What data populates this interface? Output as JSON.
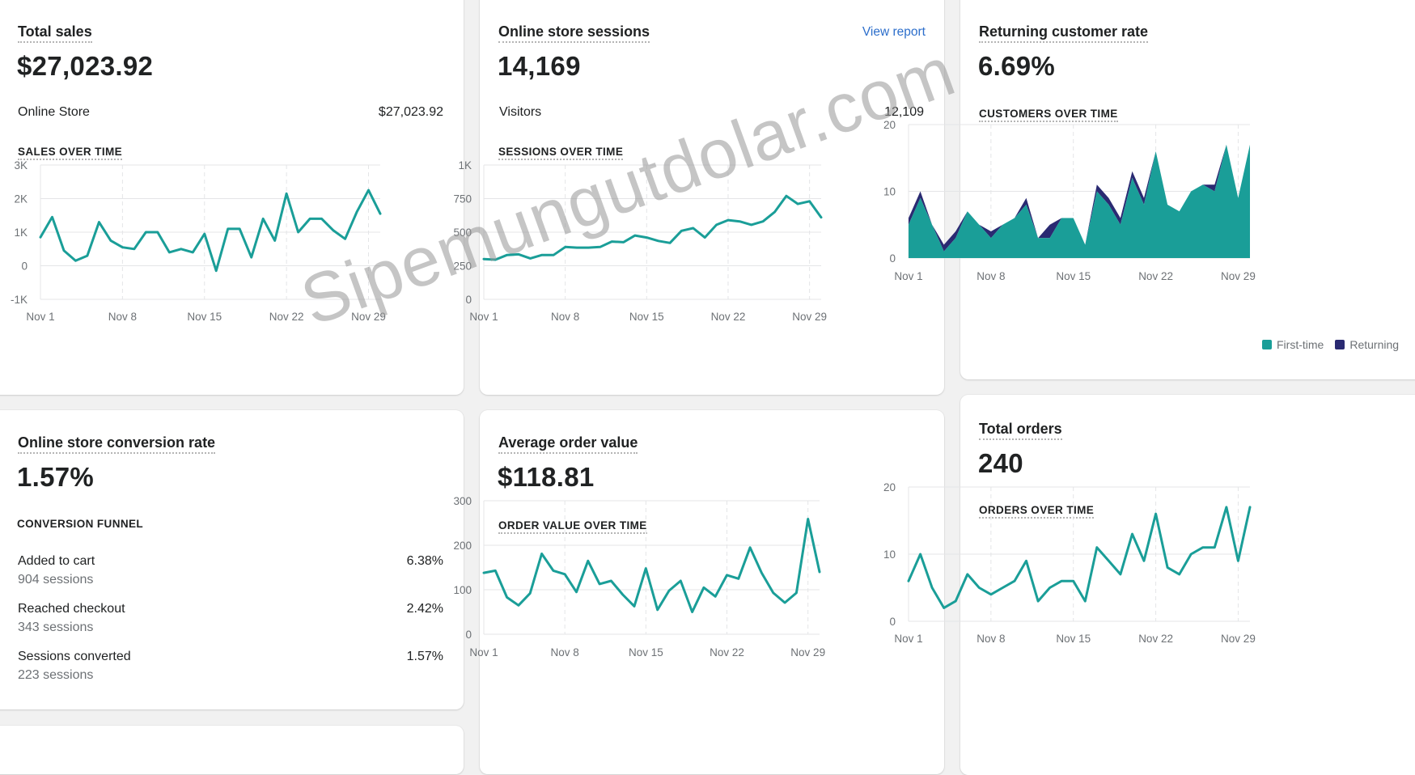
{
  "cards": {
    "total_sales": {
      "title": "Total sales",
      "value": "$27,023.92",
      "row_label": "Online Store",
      "row_value": "$27,023.92",
      "section": "SALES OVER TIME"
    },
    "sessions": {
      "title": "Online store sessions",
      "link": "View report",
      "value": "14,169",
      "row_label": "Visitors",
      "row_value": "12,109",
      "section": "SESSIONS OVER TIME"
    },
    "returning": {
      "title": "Returning customer rate",
      "value": "6.69%",
      "section": "CUSTOMERS OVER TIME",
      "legend": [
        "First-time",
        "Returning"
      ]
    },
    "conversion": {
      "title": "Online store conversion rate",
      "value": "1.57%",
      "section": "CONVERSION FUNNEL",
      "funnel": [
        {
          "label": "Added to cart",
          "sub": "904 sessions",
          "value": "6.38%"
        },
        {
          "label": "Reached checkout",
          "sub": "343 sessions",
          "value": "2.42%"
        },
        {
          "label": "Sessions converted",
          "sub": "223 sessions",
          "value": "1.57%"
        }
      ]
    },
    "aov": {
      "title": "Average order value",
      "value": "$118.81",
      "section": "ORDER VALUE OVER TIME"
    },
    "orders": {
      "title": "Total orders",
      "value": "240",
      "section": "ORDERS OVER TIME"
    }
  },
  "watermark": "Sipemungutdolar.com",
  "colors": {
    "line": "#1a9e98",
    "first_time": "#1a9e98",
    "returning": "#2a2a72",
    "grid": "#e4e5e7",
    "axis_text": "#6d7175"
  },
  "chart_data": [
    {
      "id": "sales",
      "type": "line",
      "x_ticks": [
        "Nov 1",
        "Nov 8",
        "Nov 15",
        "Nov 22",
        "Nov 29"
      ],
      "y_ticks": [
        "-1K",
        "0",
        "1K",
        "2K",
        "3K"
      ],
      "ylim": [
        -1000,
        3000
      ],
      "series": [
        {
          "values": [
            850,
            1450,
            450,
            150,
            300,
            1300,
            750,
            550,
            500,
            1000,
            1000,
            400,
            500,
            400,
            950,
            -150,
            1100,
            1100,
            250,
            1400,
            750,
            2150,
            1000,
            1400,
            1400,
            1050,
            800,
            1600,
            2250,
            1550
          ]
        }
      ]
    },
    {
      "id": "sessions",
      "type": "line",
      "x_ticks": [
        "Nov 1",
        "Nov 8",
        "Nov 15",
        "Nov 22",
        "Nov 29"
      ],
      "y_ticks": [
        "0",
        "250",
        "500",
        "750",
        "1K"
      ],
      "ylim": [
        0,
        1000
      ],
      "series": [
        {
          "values": [
            300,
            295,
            330,
            335,
            305,
            330,
            330,
            390,
            385,
            385,
            390,
            430,
            425,
            475,
            460,
            435,
            420,
            510,
            530,
            460,
            555,
            590,
            580,
            555,
            580,
            650,
            770,
            710,
            730,
            610
          ]
        }
      ]
    },
    {
      "id": "customers",
      "type": "area",
      "x_ticks": [
        "Nov 1",
        "Nov 8",
        "Nov 15",
        "Nov 22",
        "Nov 29"
      ],
      "y_ticks": [
        "0",
        "10",
        "20"
      ],
      "ylim": [
        0,
        20
      ],
      "series": [
        {
          "name": "First-time",
          "values": [
            5,
            9,
            5,
            1,
            3,
            7,
            5,
            3,
            5,
            6,
            8,
            3,
            3,
            6,
            6,
            2,
            10,
            8,
            5,
            12,
            8,
            16,
            8,
            7,
            10,
            11,
            10,
            17,
            9,
            17
          ]
        },
        {
          "name": "Returning",
          "values": [
            1,
            1,
            0,
            1,
            1,
            0,
            0,
            1,
            0,
            0,
            1,
            0,
            2,
            0,
            0,
            0,
            1,
            1,
            1,
            1,
            1,
            0,
            0,
            0,
            0,
            0,
            1,
            0,
            0,
            0
          ]
        }
      ]
    },
    {
      "id": "aov",
      "type": "line",
      "x_ticks": [
        "Nov 1",
        "Nov 8",
        "Nov 15",
        "Nov 22",
        "Nov 29"
      ],
      "y_ticks": [
        "0",
        "100",
        "200",
        "300"
      ],
      "ylim": [
        0,
        300
      ],
      "series": [
        {
          "values": [
            138,
            143,
            83,
            65,
            92,
            181,
            143,
            135,
            95,
            165,
            113,
            120,
            89,
            63,
            148,
            55,
            98,
            120,
            50,
            105,
            85,
            133,
            125,
            195,
            138,
            93,
            71,
            93,
            259,
            140
          ]
        }
      ]
    },
    {
      "id": "orders",
      "type": "line",
      "x_ticks": [
        "Nov 1",
        "Nov 8",
        "Nov 15",
        "Nov 22",
        "Nov 29"
      ],
      "y_ticks": [
        "0",
        "10",
        "20"
      ],
      "ylim": [
        0,
        20
      ],
      "series": [
        {
          "values": [
            6,
            10,
            5,
            2,
            3,
            7,
            5,
            4,
            5,
            6,
            9,
            3,
            5,
            6,
            6,
            3,
            11,
            9,
            7,
            13,
            9,
            16,
            8,
            7,
            10,
            11,
            11,
            17,
            9,
            17
          ]
        }
      ]
    }
  ]
}
